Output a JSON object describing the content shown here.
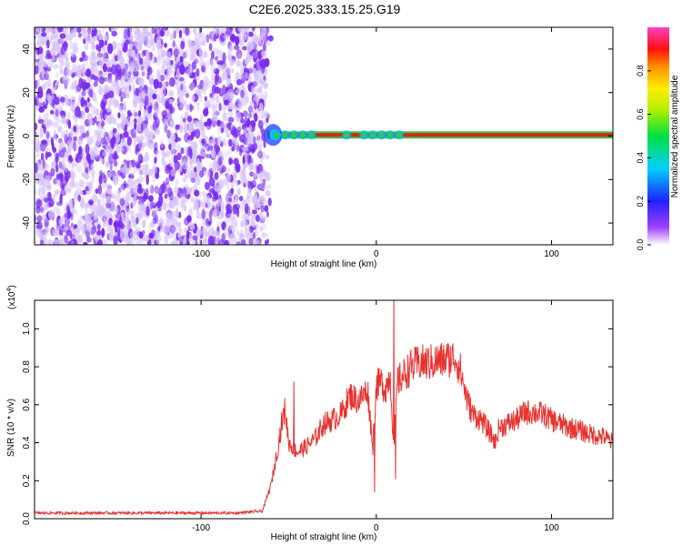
{
  "title": "C2E6.2025.333.15.25.G19",
  "colors": {
    "spectro_noise": "#7a2cf0",
    "spectro_noise_light": "#d6c2fb",
    "line_red": "#e02020",
    "line_green": "#2ecc40",
    "snr_line": "#e8322f"
  },
  "chart_data": [
    {
      "type": "heatmap",
      "title": "C2E6.2025.333.15.25.G19",
      "xlabel": "Height of straight line (km)",
      "ylabel": "Frequency (Hz)",
      "xlim": [
        -195,
        135
      ],
      "ylim": [
        -50,
        50
      ],
      "xticks": [
        -100,
        0,
        100
      ],
      "xtick_labels": [
        "-100",
        "0",
        "100"
      ],
      "yticks": [
        -40,
        -20,
        0,
        20,
        40
      ],
      "ytick_labels": [
        "-40",
        "-20",
        "0",
        "20",
        "40"
      ],
      "noise_region_x": [
        -195,
        -62
      ],
      "signal_start_x": -62,
      "signal_frequency": 0.5,
      "bright_spots_x": [
        -57,
        -52,
        -47,
        -42,
        -37,
        -17,
        -7,
        -2,
        3,
        8,
        13
      ],
      "colorbar": {
        "label": "Normalized spectral amplitude",
        "range": [
          0.0,
          1.0
        ],
        "ticks": [
          0.0,
          0.2,
          0.4,
          0.6,
          0.8
        ],
        "tick_labels": [
          "0.0",
          "0.2",
          "0.4",
          "0.6",
          "0.8"
        ]
      },
      "grid": false
    },
    {
      "type": "line",
      "xlabel": "Height of straight line (km)",
      "ylabel": "SNR (10 * v/v)",
      "y_multiplier_label": "(x10",
      "y_multiplier_exp": "4",
      "y_multiplier_close": ")",
      "xlim": [
        -195,
        135
      ],
      "ylim": [
        0.0,
        1.15
      ],
      "xticks": [
        -100,
        0,
        100
      ],
      "xtick_labels": [
        "-100",
        "0",
        "100"
      ],
      "yticks": [
        0.0,
        0.2,
        0.4,
        0.6,
        0.8,
        1.0
      ],
      "ytick_labels": [
        "0.0",
        "0.2",
        "0.4",
        "0.6",
        "0.8",
        "1.0"
      ],
      "series": [
        {
          "x": [
            -195,
            -150,
            -100,
            -80,
            -65,
            -60,
            -56,
            -54,
            -52,
            -50,
            -45,
            -40,
            -35,
            -30,
            -25,
            -20,
            -15,
            -10,
            -5,
            -2,
            0,
            3,
            5,
            8,
            10,
            12,
            15,
            20,
            25,
            30,
            35,
            40,
            45,
            48,
            52,
            55,
            60,
            65,
            68,
            70,
            75,
            80,
            85,
            90,
            95,
            100,
            105,
            110,
            115,
            120,
            125,
            130,
            135
          ],
          "y": [
            0.03,
            0.03,
            0.03,
            0.03,
            0.04,
            0.18,
            0.38,
            0.5,
            0.58,
            0.4,
            0.35,
            0.38,
            0.42,
            0.5,
            0.52,
            0.55,
            0.65,
            0.62,
            0.68,
            0.38,
            0.7,
            0.72,
            0.68,
            0.76,
            0.35,
            0.72,
            0.75,
            0.8,
            0.82,
            0.82,
            0.83,
            0.84,
            0.85,
            0.78,
            0.62,
            0.55,
            0.52,
            0.45,
            0.4,
            0.48,
            0.5,
            0.52,
            0.56,
            0.56,
            0.55,
            0.52,
            0.5,
            0.48,
            0.47,
            0.45,
            0.44,
            0.43,
            0.4
          ],
          "spikes": [
            {
              "x": -47,
              "y": 0.72
            },
            {
              "x": -1,
              "y": 0.14
            },
            {
              "x": 10,
              "y": 1.15
            },
            {
              "x": 11,
              "y": 0.21
            }
          ]
        }
      ],
      "grid": false
    }
  ]
}
